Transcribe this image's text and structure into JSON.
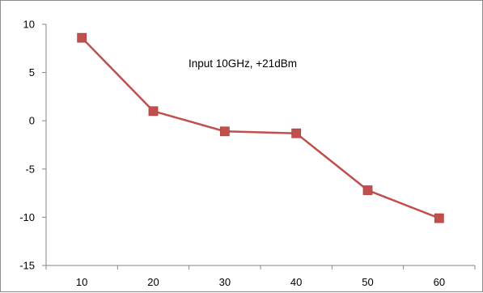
{
  "chart_data": {
    "type": "line",
    "x": [
      10,
      20,
      30,
      40,
      50,
      60
    ],
    "series": [
      {
        "values": [
          8.6,
          1.0,
          -1.1,
          -1.3,
          -7.2,
          -10.1
        ]
      }
    ],
    "ylim": [
      -15,
      10
    ],
    "yticks": [
      "10",
      "5",
      "0",
      "-5",
      "-10",
      "-15"
    ],
    "xticks": [
      "10",
      "20",
      "30",
      "40",
      "50",
      "60"
    ],
    "annotation": "Input 10GHz, +21dBm",
    "grid": false,
    "legend": "none",
    "colors": {
      "series": "#c0504d",
      "axis": "#868686"
    }
  }
}
